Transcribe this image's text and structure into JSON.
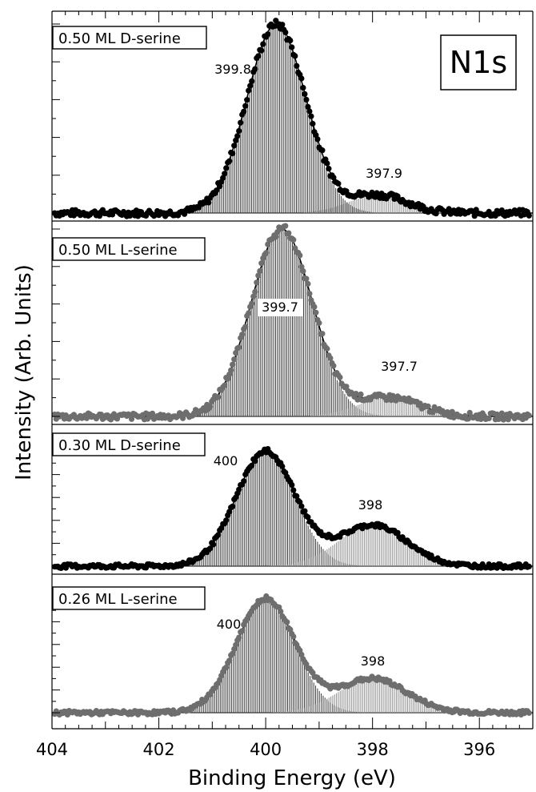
{
  "chart_data": {
    "type": "line",
    "xlabel": "Binding Energy (eV)",
    "ylabel": "Intensity (Arb. Units)",
    "xlim": [
      404,
      395
    ],
    "x_ticks": [
      404,
      402,
      400,
      398,
      396
    ],
    "x_tick_labels": [
      "404",
      "402",
      "400",
      "398",
      "396"
    ],
    "annotation": "N1s",
    "grid": false,
    "panels": [
      {
        "label": "0.50 ML D-serine",
        "marker_color": "#000000",
        "main_fill": "#3a3a3a",
        "minor_fill": "#8e8e8e",
        "peaks": [
          {
            "center": 399.8,
            "fwhm": 1.3,
            "height": 1.0,
            "label": "399.8"
          },
          {
            "center": 397.9,
            "fwhm": 1.3,
            "height": 0.095,
            "label": "397.9"
          }
        ],
        "baseline": 0.0
      },
      {
        "label": "0.50 ML L-serine",
        "marker_color": "#6e6e6e",
        "main_fill": "#3a3a3a",
        "minor_fill": "#8e8e8e",
        "peaks": [
          {
            "center": 399.7,
            "fwhm": 1.35,
            "height": 1.0,
            "label": "399.7"
          },
          {
            "center": 397.7,
            "fwhm": 1.35,
            "height": 0.1,
            "label": "397.7"
          }
        ],
        "baseline": 0.0
      },
      {
        "label": "0.30 ML D-serine",
        "marker_color": "#000000",
        "main_fill": "#3a3a3a",
        "minor_fill": "#8e8e8e",
        "peaks": [
          {
            "center": 400.0,
            "fwhm": 1.3,
            "height": 1.0,
            "label": "400"
          },
          {
            "center": 398.0,
            "fwhm": 1.5,
            "height": 0.36,
            "label": "398"
          }
        ],
        "baseline": 0.0
      },
      {
        "label": "0.26 ML L-serine",
        "marker_color": "#6e6e6e",
        "main_fill": "#3a3a3a",
        "minor_fill": "#8e8e8e",
        "peaks": [
          {
            "center": 400.0,
            "fwhm": 1.3,
            "height": 1.0,
            "label": "400"
          },
          {
            "center": 398.0,
            "fwhm": 1.5,
            "height": 0.3,
            "label": "398"
          }
        ],
        "baseline": 0.0
      }
    ]
  }
}
